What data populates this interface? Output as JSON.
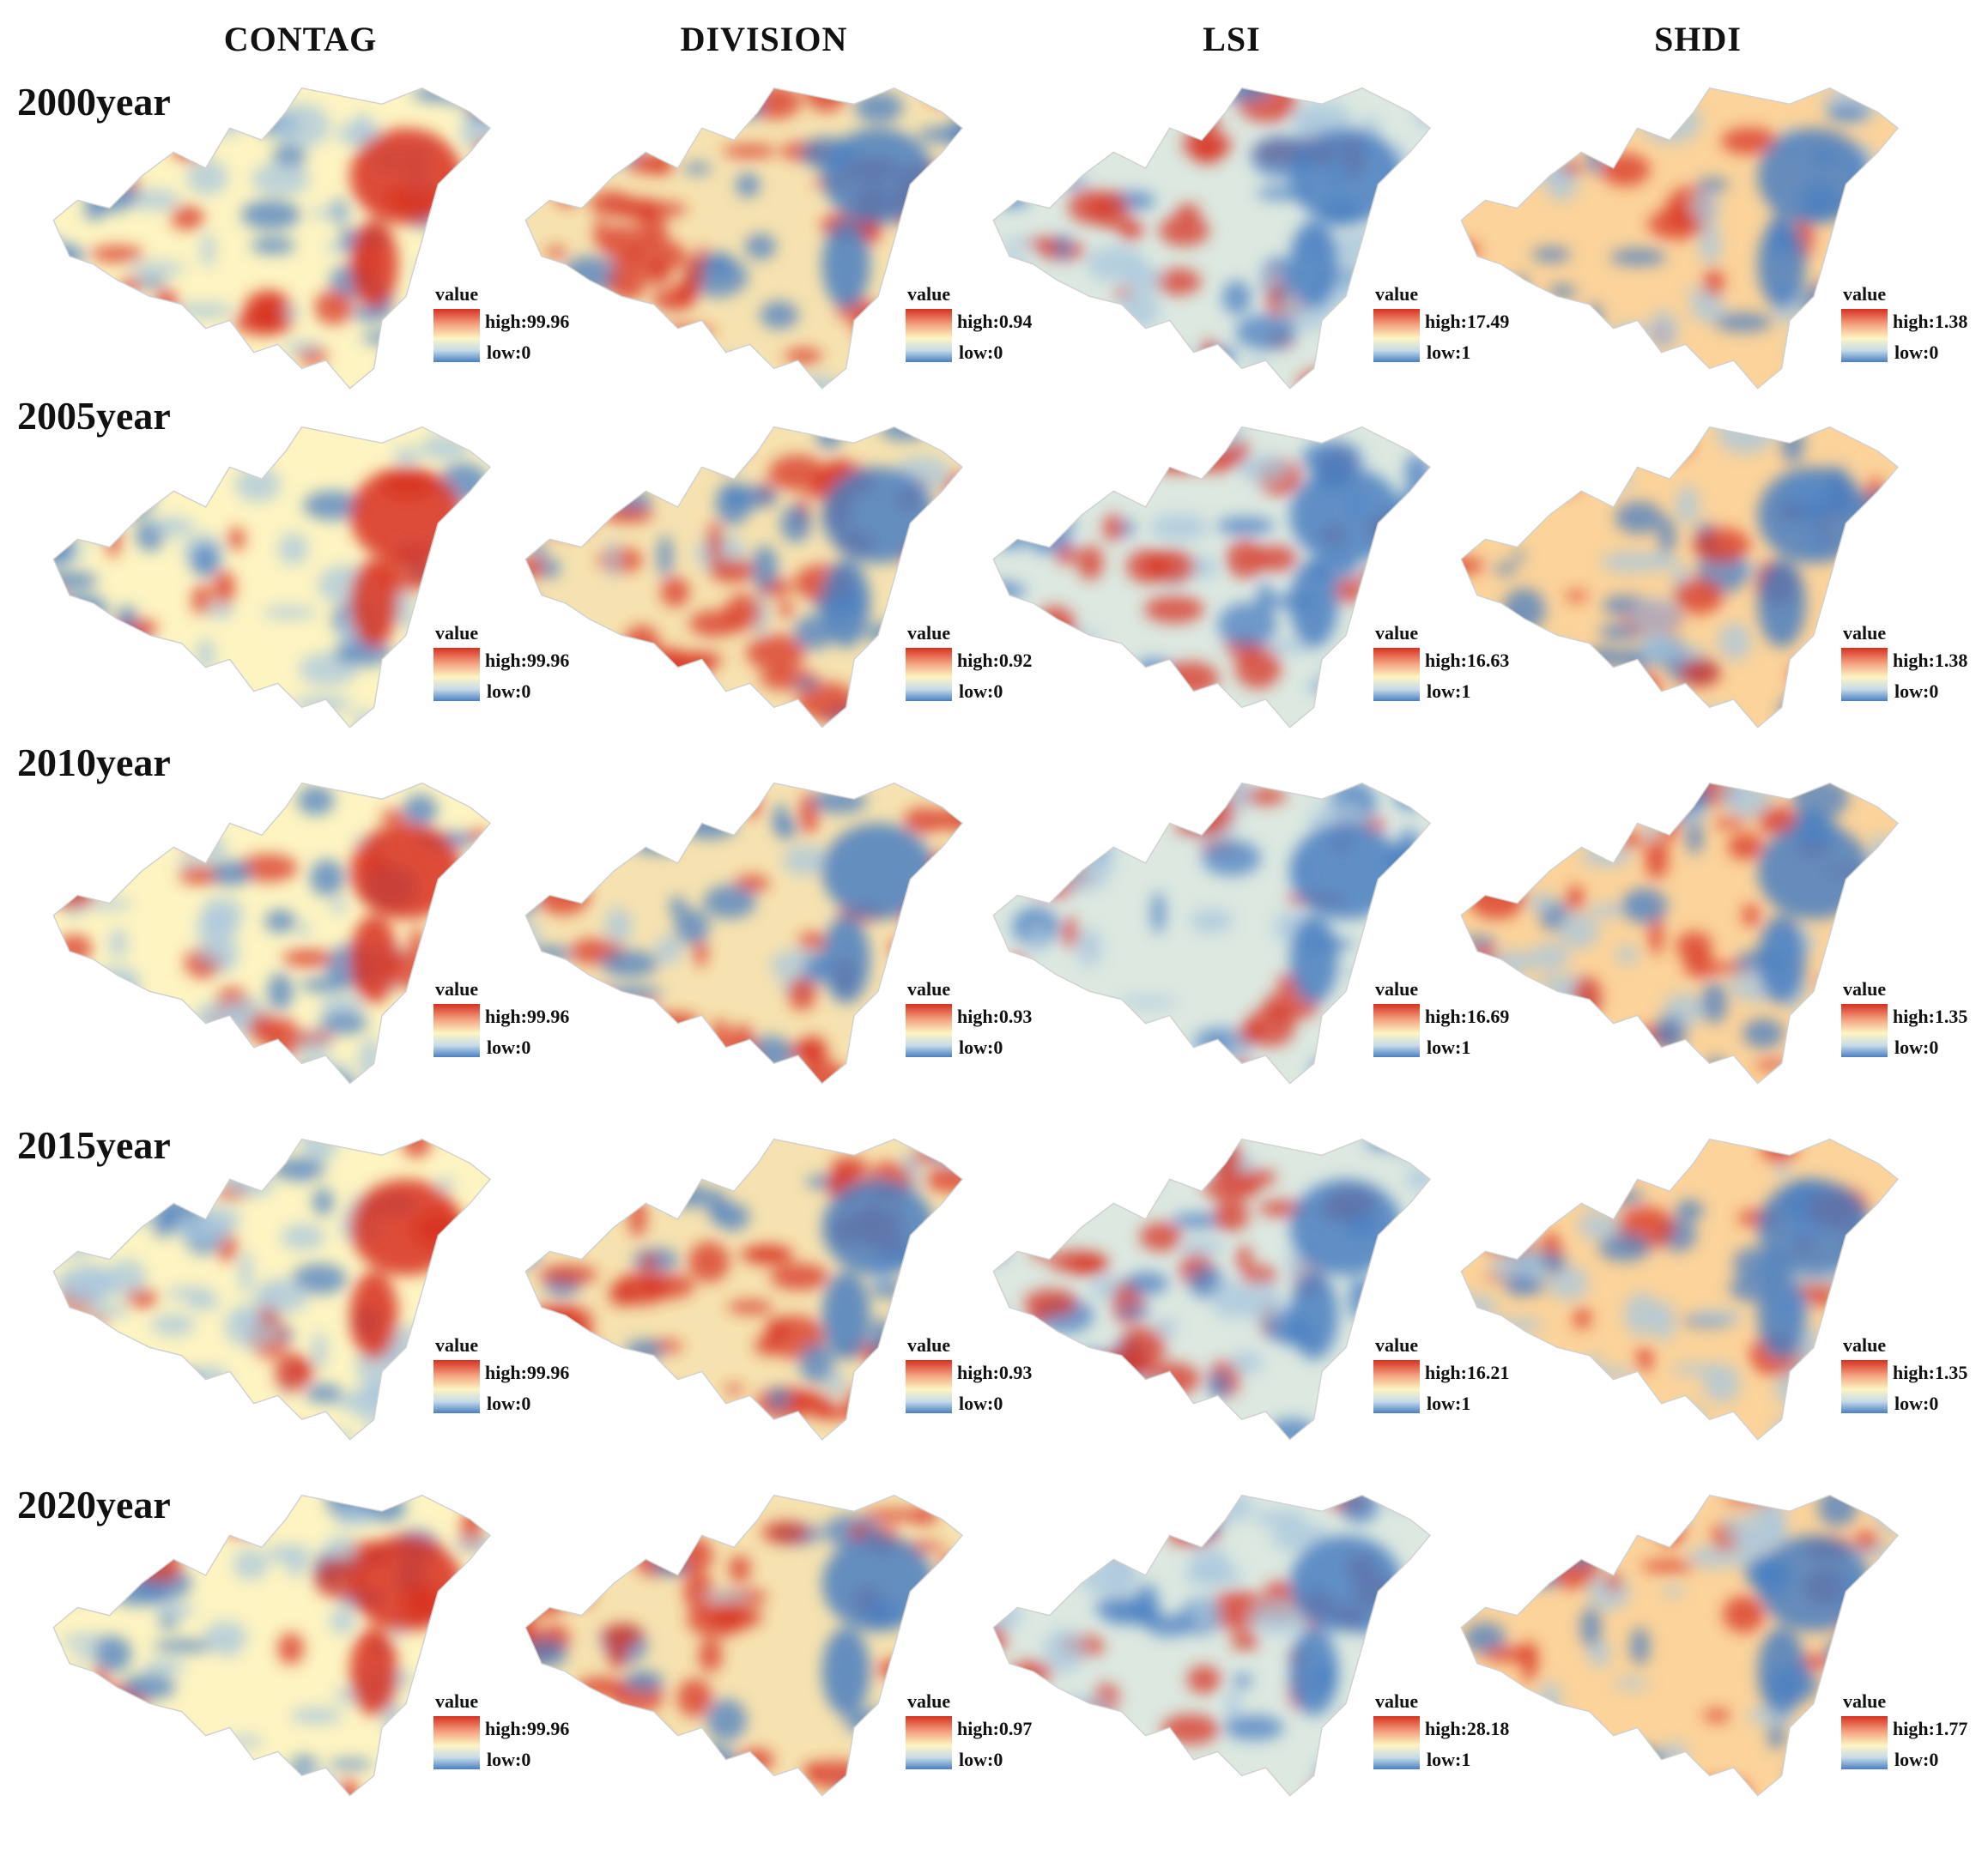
{
  "columns": [
    "CONTAG",
    "DIVISION",
    "LSI",
    "SHDI"
  ],
  "years": [
    "2000year",
    "2005year",
    "2010year",
    "2015year",
    "2020year"
  ],
  "legend_title": "value",
  "colors": {
    "high": "#d7301f",
    "mid": "#fdf4c2",
    "low": "#4a7fc1"
  },
  "legends": [
    [
      {
        "high": "high:99.96",
        "low": "low:0"
      },
      {
        "high": "high:0.94",
        "low": "low:0"
      },
      {
        "high": "high:17.49",
        "low": "low:1"
      },
      {
        "high": "high:1.38",
        "low": "low:0"
      }
    ],
    [
      {
        "high": "high:99.96",
        "low": "low:0"
      },
      {
        "high": "high:0.92",
        "low": "low:0"
      },
      {
        "high": "high:16.63",
        "low": "low:1"
      },
      {
        "high": "high:1.38",
        "low": "low:0"
      }
    ],
    [
      {
        "high": "high:99.96",
        "low": "low:0"
      },
      {
        "high": "high:0.93",
        "low": "low:0"
      },
      {
        "high": "high:16.69",
        "low": "low:1"
      },
      {
        "high": "high:1.35",
        "low": "low:0"
      }
    ],
    [
      {
        "high": "high:99.96",
        "low": "low:0"
      },
      {
        "high": "high:0.93",
        "low": "low:0"
      },
      {
        "high": "high:16.21",
        "low": "low:1"
      },
      {
        "high": "high:1.35",
        "low": "low:0"
      }
    ],
    [
      {
        "high": "high:99.96",
        "low": "low:0"
      },
      {
        "high": "high:0.97",
        "low": "low:0"
      },
      {
        "high": "high:28.18",
        "low": "low:1"
      },
      {
        "high": "high:1.77",
        "low": "low:0"
      }
    ]
  ]
}
